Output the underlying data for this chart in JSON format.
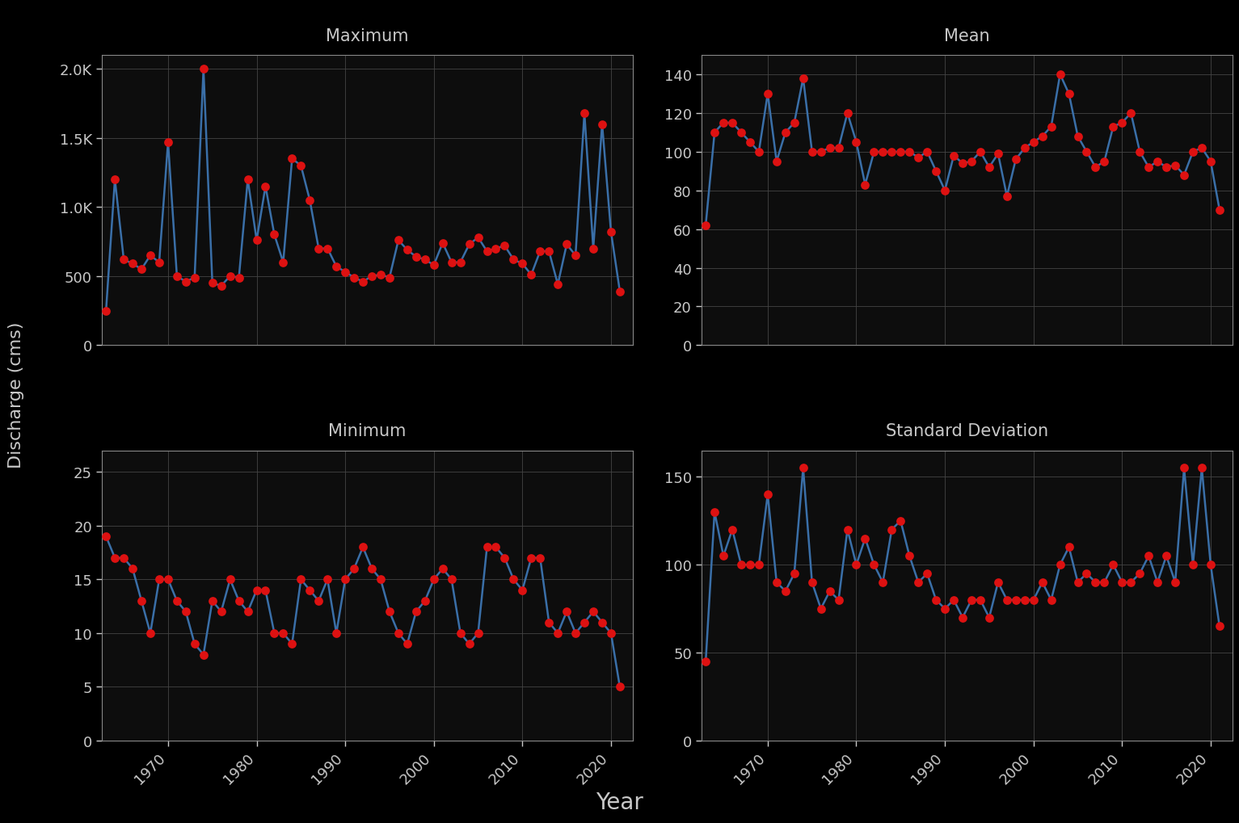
{
  "years": [
    1963,
    1964,
    1965,
    1966,
    1967,
    1968,
    1969,
    1970,
    1971,
    1972,
    1973,
    1974,
    1975,
    1976,
    1977,
    1978,
    1979,
    1980,
    1981,
    1982,
    1983,
    1984,
    1985,
    1986,
    1987,
    1988,
    1989,
    1990,
    1991,
    1992,
    1993,
    1994,
    1995,
    1996,
    1997,
    1998,
    1999,
    2000,
    2001,
    2002,
    2003,
    2004,
    2005,
    2006,
    2007,
    2008,
    2009,
    2010,
    2011,
    2012,
    2013,
    2014,
    2015,
    2016,
    2017,
    2018,
    2019,
    2020,
    2021
  ],
  "maximum": [
    250,
    1200,
    620,
    590,
    550,
    650,
    600,
    1470,
    500,
    460,
    490,
    2000,
    450,
    430,
    500,
    490,
    1200,
    760,
    1150,
    800,
    600,
    1350,
    1300,
    1050,
    700,
    700,
    570,
    530,
    490,
    460,
    500,
    510,
    490,
    760,
    690,
    640,
    620,
    580,
    740,
    600,
    600,
    730,
    780,
    680,
    700,
    720,
    620,
    590,
    510,
    680,
    680,
    440,
    730,
    650,
    1680,
    700,
    1600,
    820,
    390
  ],
  "mean": [
    62,
    110,
    115,
    115,
    110,
    105,
    100,
    130,
    95,
    110,
    115,
    138,
    100,
    100,
    102,
    102,
    120,
    105,
    83,
    100,
    100,
    100,
    100,
    100,
    97,
    100,
    90,
    80,
    98,
    94,
    95,
    100,
    92,
    99,
    77,
    96,
    102,
    105,
    108,
    113,
    140,
    130,
    108,
    100,
    92,
    95,
    113,
    115,
    120,
    100,
    92,
    95,
    92,
    93,
    88,
    100,
    102,
    95,
    70
  ],
  "minimum": [
    19,
    17,
    17,
    16,
    13,
    10,
    15,
    15,
    13,
    12,
    9,
    8,
    13,
    12,
    15,
    13,
    12,
    14,
    14,
    10,
    10,
    9,
    15,
    14,
    13,
    15,
    10,
    15,
    16,
    18,
    16,
    15,
    12,
    10,
    9,
    12,
    13,
    15,
    16,
    15,
    10,
    9,
    10,
    18,
    18,
    17,
    15,
    14,
    17,
    17,
    11,
    10,
    12,
    10,
    11,
    12,
    11,
    10,
    5
  ],
  "std": [
    45,
    130,
    105,
    120,
    100,
    100,
    100,
    140,
    90,
    85,
    95,
    155,
    90,
    75,
    85,
    80,
    120,
    100,
    115,
    100,
    90,
    120,
    125,
    105,
    90,
    95,
    80,
    75,
    80,
    70,
    80,
    80,
    70,
    90,
    80,
    80,
    80,
    80,
    90,
    80,
    100,
    110,
    90,
    95,
    90,
    90,
    100,
    90,
    90,
    95,
    105,
    90,
    105,
    90,
    155,
    100,
    155,
    100,
    65
  ],
  "bg_color": "#000000",
  "plot_bg_color": "#0d0d0d",
  "title_bg_color": "#3a3a3a",
  "line_color": "#3a6fa8",
  "dot_color": "#dd1111",
  "grid_color": "#444444",
  "spine_color": "#888888",
  "text_color": "#c8c8c8",
  "ylabel": "Discharge (cms)",
  "xlabel": "Year",
  "titles": [
    "Maximum",
    "Mean",
    "Minimum",
    "Standard Deviation"
  ],
  "max_ylim": [
    0,
    2100
  ],
  "mean_ylim": [
    0,
    150
  ],
  "min_ylim": [
    0,
    27
  ],
  "std_ylim": [
    0,
    165
  ],
  "max_yticks": [
    0,
    500,
    1000,
    1500,
    2000
  ],
  "mean_yticks": [
    0,
    20,
    40,
    60,
    80,
    100,
    120,
    140
  ],
  "min_yticks": [
    0,
    5,
    10,
    15,
    20,
    25
  ],
  "std_yticks": [
    0,
    50,
    100,
    150
  ]
}
